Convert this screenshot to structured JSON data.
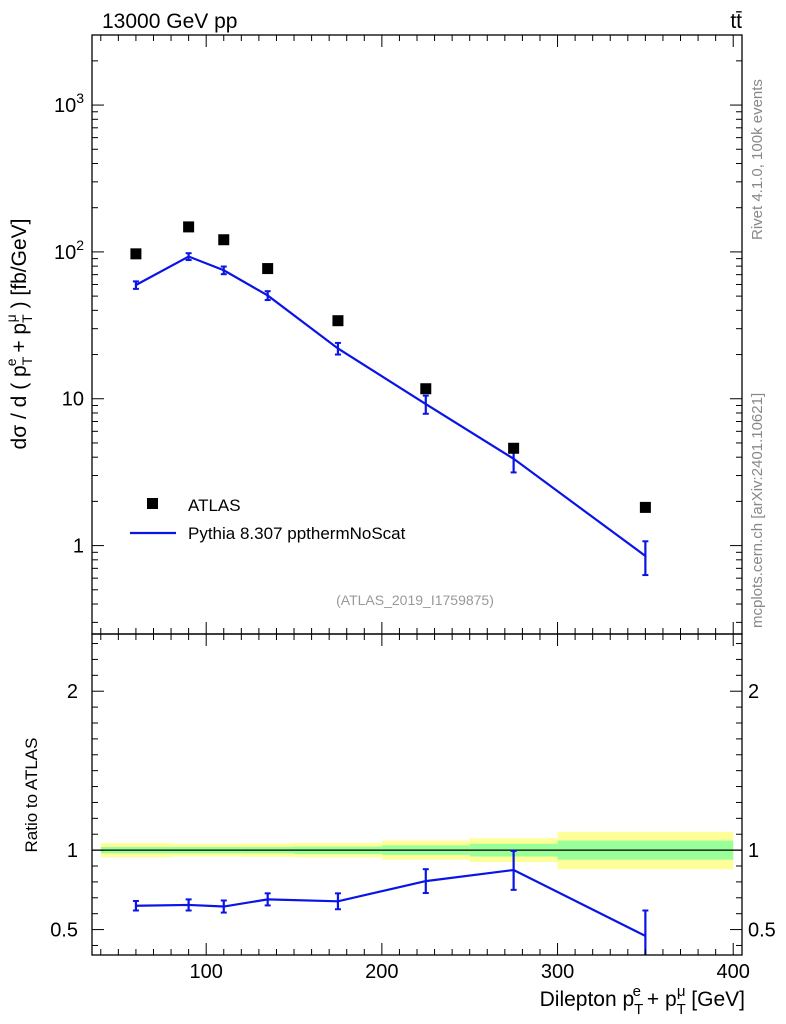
{
  "header": {
    "left": "13000 GeV pp",
    "right": "tt̄"
  },
  "side_labels": {
    "rivet": "Rivet 4.1.0,  100k events",
    "mcplots": "mcplots.cern.ch [arXiv:2401.10621]"
  },
  "reference": "(ATLAS_2019_I1759875)",
  "colors": {
    "data": "#000000",
    "mc": "#0a14e6",
    "band_inner": "#99ff99",
    "band_outer": "#ffff99"
  },
  "chart_data": [
    {
      "type": "scatter",
      "title": "",
      "xlabel": "Dilepton p_T^e + p_T^μ [GeV]",
      "ylabel": "dσ / d ( p_T^e + p_T^μ ) [fb/GeV]",
      "yscale": "log",
      "xlim": [
        35,
        405
      ],
      "ylim": [
        0.25,
        3000
      ],
      "y_ticks": [
        {
          "value": 1000,
          "label": "10",
          "exp": "3"
        },
        {
          "value": 100,
          "label": "10",
          "exp": "2"
        },
        {
          "value": 10,
          "label": "10",
          "exp": ""
        },
        {
          "value": 1,
          "label": "1",
          "exp": ""
        }
      ],
      "legend_position": "lower-left",
      "series": [
        {
          "name": "ATLAS",
          "kind": "markers",
          "x": [
            60,
            90,
            110,
            135,
            175,
            225,
            275,
            350
          ],
          "y": [
            97,
            148,
            121,
            77,
            34,
            11.7,
            4.6,
            1.82
          ]
        },
        {
          "name": "Pythia 8.307 ppthermNoScat",
          "kind": "line",
          "x": [
            60,
            90,
            110,
            135,
            175,
            225,
            275,
            350
          ],
          "y": [
            59.5,
            93,
            75,
            50.5,
            22,
            9.2,
            3.9,
            0.85
          ],
          "err": [
            3.5,
            5,
            4.5,
            3.5,
            2,
            1.3,
            0.75,
            0.22
          ]
        }
      ]
    },
    {
      "type": "line",
      "xlabel": "Dilepton p_T^e + p_T^μ [GeV]",
      "ylabel": "Ratio to ATLAS",
      "xlim": [
        35,
        405
      ],
      "ylim": [
        0.34,
        2.36
      ],
      "x_ticks": [
        100,
        200,
        300,
        400
      ],
      "y_ticks": [
        0.5,
        1,
        2
      ],
      "bins": [
        {
          "lo": 40,
          "hi": 80,
          "inner": [
            0.98,
            1.02
          ],
          "outer": [
            0.955,
            1.045
          ]
        },
        {
          "lo": 80,
          "hi": 120,
          "inner": [
            0.98,
            1.02
          ],
          "outer": [
            0.96,
            1.04
          ]
        },
        {
          "lo": 120,
          "hi": 150,
          "inner": [
            0.98,
            1.02
          ],
          "outer": [
            0.958,
            1.042
          ]
        },
        {
          "lo": 150,
          "hi": 200,
          "inner": [
            0.975,
            1.022
          ],
          "outer": [
            0.955,
            1.045
          ]
        },
        {
          "lo": 200,
          "hi": 250,
          "inner": [
            0.97,
            1.03
          ],
          "outer": [
            0.94,
            1.06
          ]
        },
        {
          "lo": 250,
          "hi": 300,
          "inner": [
            0.96,
            1.04
          ],
          "outer": [
            0.925,
            1.075
          ]
        },
        {
          "lo": 300,
          "hi": 400,
          "inner": [
            0.94,
            1.06
          ],
          "outer": [
            0.88,
            1.115
          ]
        }
      ],
      "series": [
        {
          "name": "Pythia 8.307 ppthermNoScat / ATLAS",
          "x": [
            60,
            90,
            110,
            135,
            175,
            225,
            275,
            350
          ],
          "y": [
            0.65,
            0.655,
            0.645,
            0.69,
            0.678,
            0.805,
            0.875,
            0.46
          ],
          "err_lo": [
            0.03,
            0.035,
            0.038,
            0.038,
            0.05,
            0.075,
            0.125,
            0.2
          ],
          "err_hi": [
            0.03,
            0.035,
            0.038,
            0.038,
            0.05,
            0.075,
            0.12,
            0.16
          ]
        }
      ]
    }
  ]
}
